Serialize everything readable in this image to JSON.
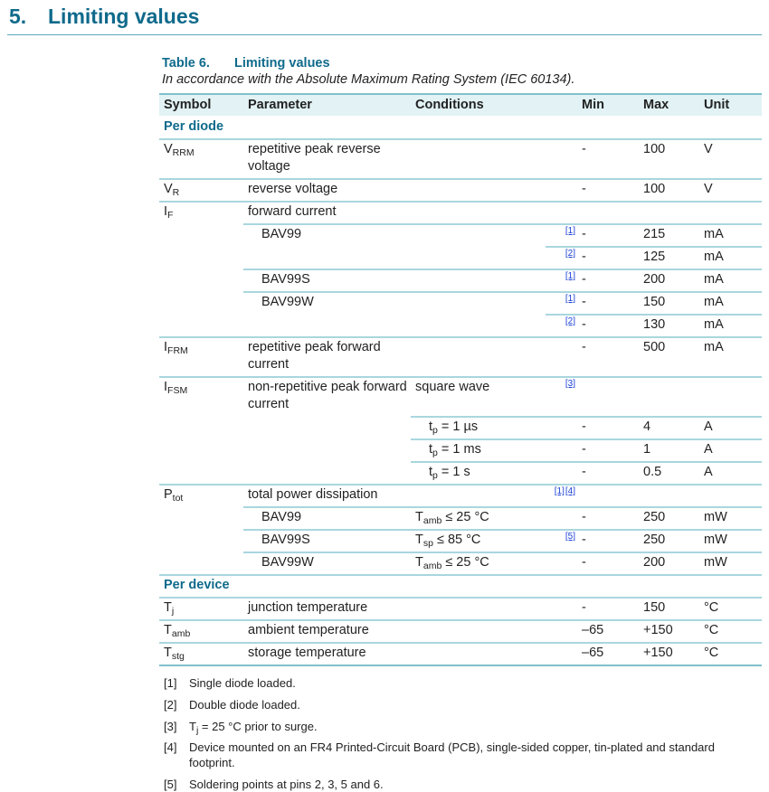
{
  "section": {
    "number": "5.",
    "title": "Limiting values"
  },
  "table": {
    "number": "Table 6.",
    "title": "Limiting values",
    "caption": "In accordance with the Absolute Maximum Rating System (IEC 60134).",
    "headers": {
      "symbol": "Symbol",
      "parameter": "Parameter",
      "conditions": "Conditions",
      "min": "Min",
      "max": "Max",
      "unit": "Unit"
    },
    "rows": [
      {
        "group": "Per diode",
        "border": "none"
      },
      {
        "sym": "V",
        "sym_sub": "RRM",
        "param": "repetitive peak reverse voltage",
        "min": "-",
        "max": "100",
        "unit": "V",
        "border": "full"
      },
      {
        "sym": "V",
        "sym_sub": "R",
        "param": "reverse voltage",
        "min": "-",
        "max": "100",
        "unit": "V",
        "border": "full"
      },
      {
        "sym": "I",
        "sym_sub": "F",
        "param": "forward current",
        "border": "full"
      },
      {
        "param": "BAV99",
        "param_indent": true,
        "notes": [
          "[1]"
        ],
        "min": "-",
        "max": "215",
        "unit": "mA",
        "border": "parameter"
      },
      {
        "notes": [
          "[2]"
        ],
        "min": "-",
        "max": "125",
        "unit": "mA",
        "border": "note"
      },
      {
        "param": "BAV99S",
        "param_indent": true,
        "notes": [
          "[1]"
        ],
        "min": "-",
        "max": "200",
        "unit": "mA",
        "border": "parameter"
      },
      {
        "param": "BAV99W",
        "param_indent": true,
        "notes": [
          "[1]"
        ],
        "min": "-",
        "max": "150",
        "unit": "mA",
        "border": "parameter"
      },
      {
        "notes": [
          "[2]"
        ],
        "min": "-",
        "max": "130",
        "unit": "mA",
        "border": "note"
      },
      {
        "sym": "I",
        "sym_sub": "FRM",
        "param": "repetitive peak forward current",
        "min": "-",
        "max": "500",
        "unit": "mA",
        "border": "full"
      },
      {
        "sym": "I",
        "sym_sub": "FSM",
        "param": "non-repetitive peak forward current",
        "cond_pre": "square wave",
        "notes": [
          "[3]"
        ],
        "border": "full"
      },
      {
        "cond_pre": "t",
        "cond_sub": "p",
        "cond_post": " = 1 µs",
        "cond_indent": true,
        "min": "-",
        "max": "4",
        "unit": "A",
        "border": "conditions"
      },
      {
        "cond_pre": "t",
        "cond_sub": "p",
        "cond_post": " = 1 ms",
        "cond_indent": true,
        "min": "-",
        "max": "1",
        "unit": "A",
        "border": "conditions"
      },
      {
        "cond_pre": "t",
        "cond_sub": "p",
        "cond_post": " = 1 s",
        "cond_indent": true,
        "min": "-",
        "max": "0.5",
        "unit": "A",
        "border": "conditions"
      },
      {
        "sym": "P",
        "sym_sub": "tot",
        "param": "total power dissipation",
        "notes": [
          "[1]",
          "[4]"
        ],
        "border": "full"
      },
      {
        "param": "BAV99",
        "param_indent": true,
        "cond_pre": "T",
        "cond_sub": "amb",
        "cond_post": " ≤ 25 °C",
        "min": "-",
        "max": "250",
        "unit": "mW",
        "border": "parameter"
      },
      {
        "param": "BAV99S",
        "param_indent": true,
        "cond_pre": "T",
        "cond_sub": "sp",
        "cond_post": " ≤ 85 °C",
        "notes": [
          "[5]"
        ],
        "min": "-",
        "max": "250",
        "unit": "mW",
        "border": "parameter"
      },
      {
        "param": "BAV99W",
        "param_indent": true,
        "cond_pre": "T",
        "cond_sub": "amb",
        "cond_post": " ≤ 25 °C",
        "min": "-",
        "max": "200",
        "unit": "mW",
        "border": "parameter"
      },
      {
        "group": "Per device",
        "border": "full"
      },
      {
        "sym": "T",
        "sym_sub": "j",
        "param": "junction temperature",
        "min": "-",
        "max": "150",
        "unit": "°C",
        "border": "full"
      },
      {
        "sym": "T",
        "sym_sub": "amb",
        "param": "ambient temperature",
        "min": "–65",
        "max": "+150",
        "unit": "°C",
        "border": "full"
      },
      {
        "sym": "T",
        "sym_sub": "stg",
        "param": "storage temperature",
        "min": "–65",
        "max": "+150",
        "unit": "°C",
        "border": "full"
      }
    ]
  },
  "footnotes": [
    {
      "key": "[1]",
      "text": "Single diode loaded."
    },
    {
      "key": "[2]",
      "text": "Double diode loaded."
    },
    {
      "key": "[3]",
      "pre": "T",
      "sub": "j",
      "text": " = 25 °C prior to surge."
    },
    {
      "key": "[4]",
      "text": "Device mounted on an FR4 Printed-Circuit Board (PCB), single-sided copper, tin-plated and standard footprint."
    },
    {
      "key": "[5]",
      "text": "Soldering points at pins 2, 3, 5 and 6."
    }
  ],
  "colors": {
    "heading": "#0f6a8b",
    "header_bg": "#e2f2f5",
    "rule": "#a9d6de",
    "link": "#1a3fd6"
  }
}
